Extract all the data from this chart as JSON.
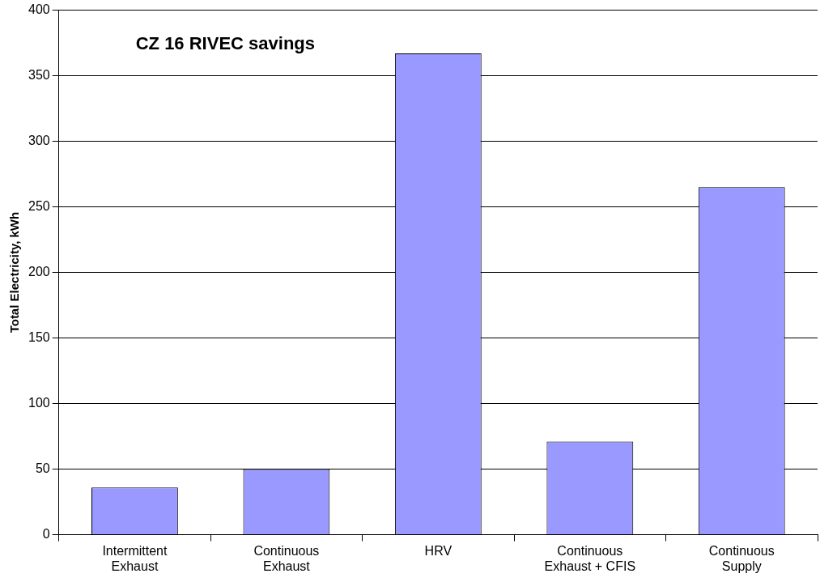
{
  "chart_data": {
    "type": "bar",
    "title": "CZ 16 RIVEC savings",
    "ylabel": "Total Electricity, kWh",
    "categories": [
      "Intermittent Exhaust",
      "Continuous Exhaust",
      "HRV",
      "Continuous Exhaust + CFIS",
      "Continuous Supply"
    ],
    "values": [
      36,
      50,
      367,
      71,
      265
    ],
    "color": "#9999ff",
    "ylim": [
      0,
      400
    ],
    "yticks": [
      0,
      50,
      100,
      150,
      200,
      250,
      300,
      350,
      400
    ],
    "grid": "y"
  }
}
